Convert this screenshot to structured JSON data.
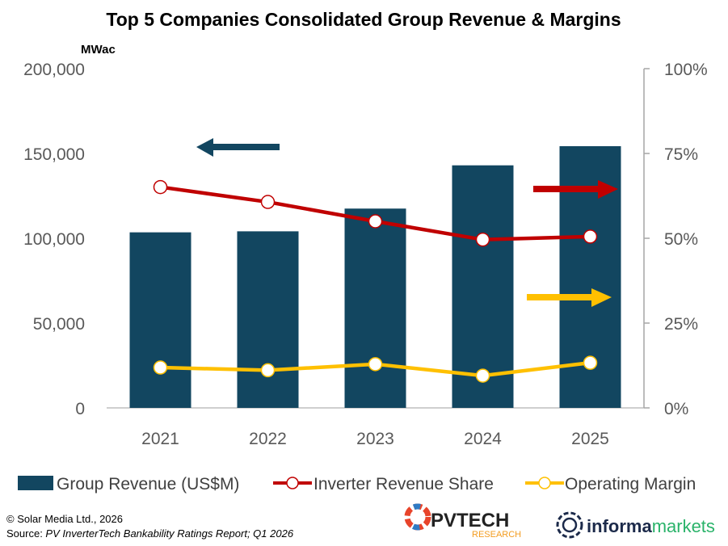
{
  "chart_data": {
    "type": "bar+line",
    "title": "Top 5 Companies Consolidated Group Revenue & Margins",
    "left_axis_unit": "MWac",
    "categories": [
      "2021",
      "2022",
      "2023",
      "2024",
      "2025"
    ],
    "left_axis": {
      "range": [
        0,
        200000
      ],
      "ticks": [
        "0",
        "50,000",
        "100,000",
        "150,000",
        "200,000"
      ]
    },
    "right_axis": {
      "range": [
        0,
        100
      ],
      "ticks": [
        "0%",
        "25%",
        "50%",
        "75%",
        "100%"
      ]
    },
    "series": [
      {
        "name": "Group Revenue (US$M)",
        "type": "bar",
        "axis": "left",
        "color": "#124660",
        "values": [
          103500,
          104100,
          117500,
          143000,
          154300
        ]
      },
      {
        "name": "Inverter Revenue Share",
        "type": "line",
        "axis": "right",
        "color": "#C00000",
        "values": [
          65.1,
          60.7,
          55.0,
          49.6,
          50.5
        ]
      },
      {
        "name": "Operating Margin",
        "type": "line",
        "axis": "right",
        "color": "#FFC000",
        "values": [
          11.9,
          11.1,
          12.9,
          9.5,
          13.3
        ]
      }
    ],
    "grid": false,
    "legend_placement": "bottom"
  },
  "footer": {
    "copyright": "© Solar Media Ltd., 2026",
    "source_prefix": "Source: ",
    "source_text": "PV InverterTech Bankability Ratings Report; Q1 2026",
    "logo_pvtech": "PVTECH",
    "logo_pvtech_sub": "RESEARCH",
    "logo_informa_a": "informa",
    "logo_informa_b": "markets"
  }
}
